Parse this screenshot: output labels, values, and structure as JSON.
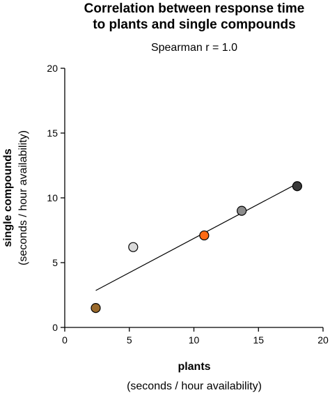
{
  "chart_data": {
    "type": "scatter",
    "title_line1": "Correlation between response time",
    "title_line2": "to plants and single compounds",
    "subtitle": "Spearman r = 1.0",
    "xlabel": "plants",
    "xlabel_sub": "(seconds / hour availability)",
    "ylabel": "single compounds",
    "ylabel_sub": "(seconds / hour availability)",
    "xlim": [
      0,
      20
    ],
    "ylim": [
      0,
      20
    ],
    "xticks": [
      "0",
      "5",
      "10",
      "15",
      "20"
    ],
    "yticks": [
      "0",
      "5",
      "10",
      "15",
      "20"
    ],
    "grid": false,
    "points": [
      {
        "x": 2.4,
        "y": 1.5,
        "color": "#9a6a2c"
      },
      {
        "x": 5.3,
        "y": 6.2,
        "color": "#d9d9d9"
      },
      {
        "x": 10.8,
        "y": 7.1,
        "color": "#ff6a13"
      },
      {
        "x": 13.7,
        "y": 9.0,
        "color": "#8c8c8c"
      },
      {
        "x": 18.0,
        "y": 10.9,
        "color": "#3a3a3a"
      }
    ],
    "trendline": {
      "x": [
        2.4,
        18.0
      ],
      "y": [
        2.85,
        11.1
      ]
    }
  }
}
